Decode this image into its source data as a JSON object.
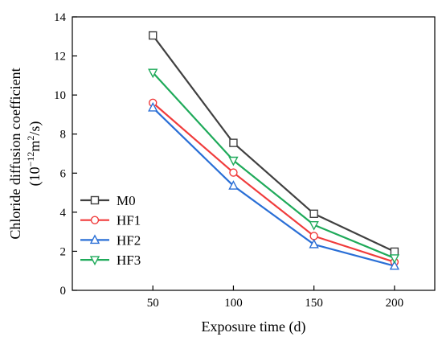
{
  "chart_data": {
    "type": "line",
    "x": [
      50,
      100,
      150,
      200
    ],
    "series": [
      {
        "name": "M0",
        "values": [
          13.05,
          7.55,
          3.92,
          1.98
        ],
        "color": "#404040",
        "marker": "square"
      },
      {
        "name": "HF1",
        "values": [
          9.6,
          6.03,
          2.78,
          1.45
        ],
        "color": "#f03c3c",
        "marker": "circle"
      },
      {
        "name": "HF2",
        "values": [
          9.35,
          5.35,
          2.35,
          1.25
        ],
        "color": "#2a6fd6",
        "marker": "triangle-up"
      },
      {
        "name": "HF3",
        "values": [
          11.15,
          6.65,
          3.35,
          1.65
        ],
        "color": "#1faa5a",
        "marker": "triangle-down"
      }
    ],
    "xlabel": "Exposure time (d)",
    "ylabel_line1": "Chloride diffusion coefficient",
    "ylabel_line2_base": "10",
    "ylabel_line2_exp": "−12",
    "ylabel_line2_mid": "m",
    "ylabel_line2_exp2": "2",
    "ylabel_line2_end": "/s",
    "xlim": [
      0,
      225
    ],
    "ylim": [
      0,
      14
    ],
    "xticks": [
      50,
      100,
      150,
      200
    ],
    "yticks": [
      0,
      2,
      4,
      6,
      8,
      10,
      12,
      14
    ],
    "legend": {
      "position": "lower-left",
      "frame": false
    },
    "grid": false
  }
}
